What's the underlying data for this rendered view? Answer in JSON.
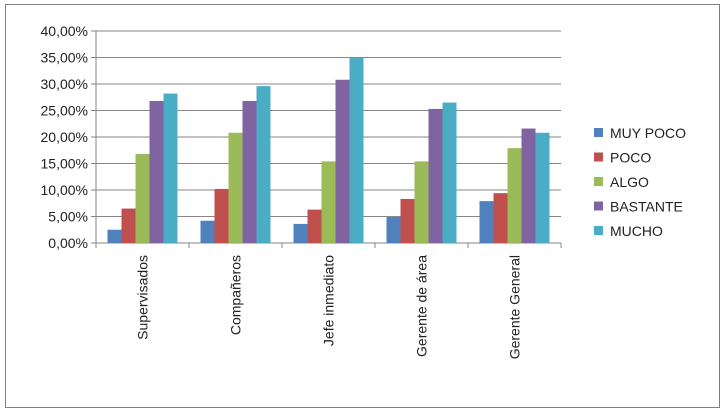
{
  "chart_data": {
    "type": "bar",
    "categories": [
      "Supervisados",
      "Compañeros",
      "Jefe inmediato",
      "Gerente de área",
      "Gerente General"
    ],
    "series": [
      {
        "name": "MUY POCO",
        "color": "#4f81bd",
        "values": [
          2.5,
          4.2,
          3.6,
          4.9,
          7.9
        ]
      },
      {
        "name": "POCO",
        "color": "#c0504d",
        "values": [
          6.5,
          10.2,
          6.3,
          8.3,
          9.4
        ]
      },
      {
        "name": "ALGO",
        "color": "#9bbb59",
        "values": [
          16.8,
          20.8,
          15.4,
          15.4,
          17.9
        ]
      },
      {
        "name": "BASTANTE",
        "color": "#8064a2",
        "values": [
          26.8,
          26.8,
          30.8,
          25.3,
          21.6
        ]
      },
      {
        "name": "MUCHO",
        "color": "#4bacc6",
        "values": [
          28.2,
          29.6,
          34.9,
          26.5,
          20.8
        ]
      }
    ],
    "ylim": [
      0,
      40
    ],
    "yticks": [
      "0,00%",
      "5,00%",
      "10,00%",
      "15,00%",
      "20,00%",
      "25,00%",
      "30,00%",
      "35,00%",
      "40,00%"
    ],
    "grid": true,
    "legend_position": "right"
  }
}
